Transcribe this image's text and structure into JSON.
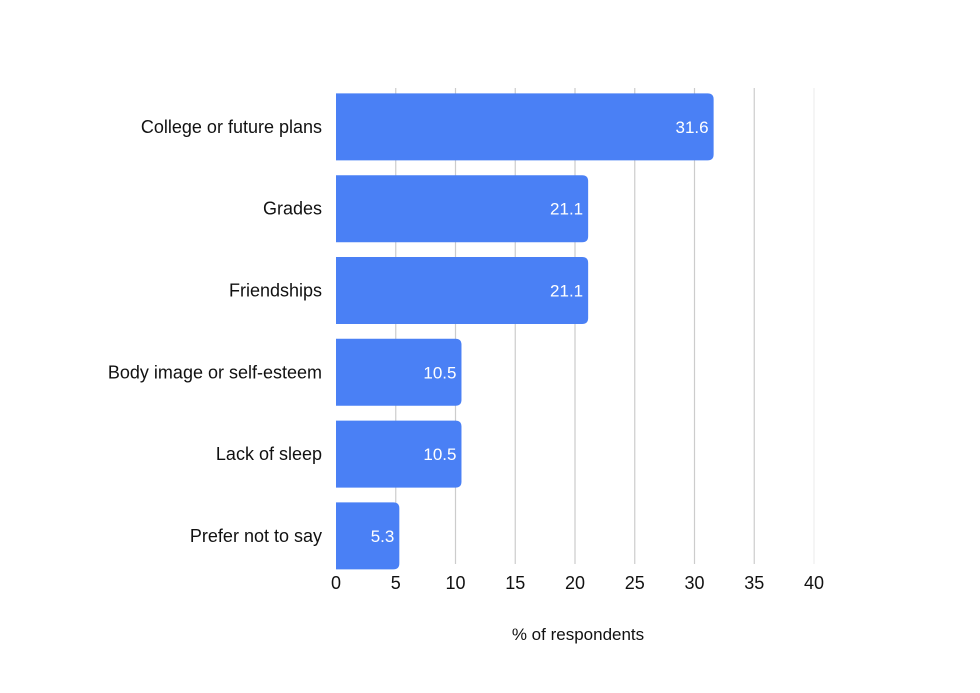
{
  "chart_data": {
    "type": "bar",
    "orientation": "horizontal",
    "categories": [
      "College or future plans",
      "Grades",
      "Friendships",
      "Body image or self-esteem",
      "Lack of sleep",
      "Prefer not to say"
    ],
    "values": [
      31.6,
      21.1,
      21.1,
      10.5,
      10.5,
      5.3
    ],
    "value_labels": [
      "31.6",
      "21.1",
      "21.1",
      "10.5",
      "10.5",
      "5.3"
    ],
    "title": "",
    "xlabel": "% of respondents",
    "ylabel": "",
    "xlim": [
      0,
      40
    ],
    "x_ticks": [
      0,
      5,
      10,
      15,
      20,
      25,
      30,
      35,
      40
    ],
    "grid": "vertical",
    "legend": "none",
    "colors": {
      "bar": "#4a80f5",
      "grid": "#cccccc",
      "text": "#111111",
      "value_text": "#ffffff"
    }
  }
}
